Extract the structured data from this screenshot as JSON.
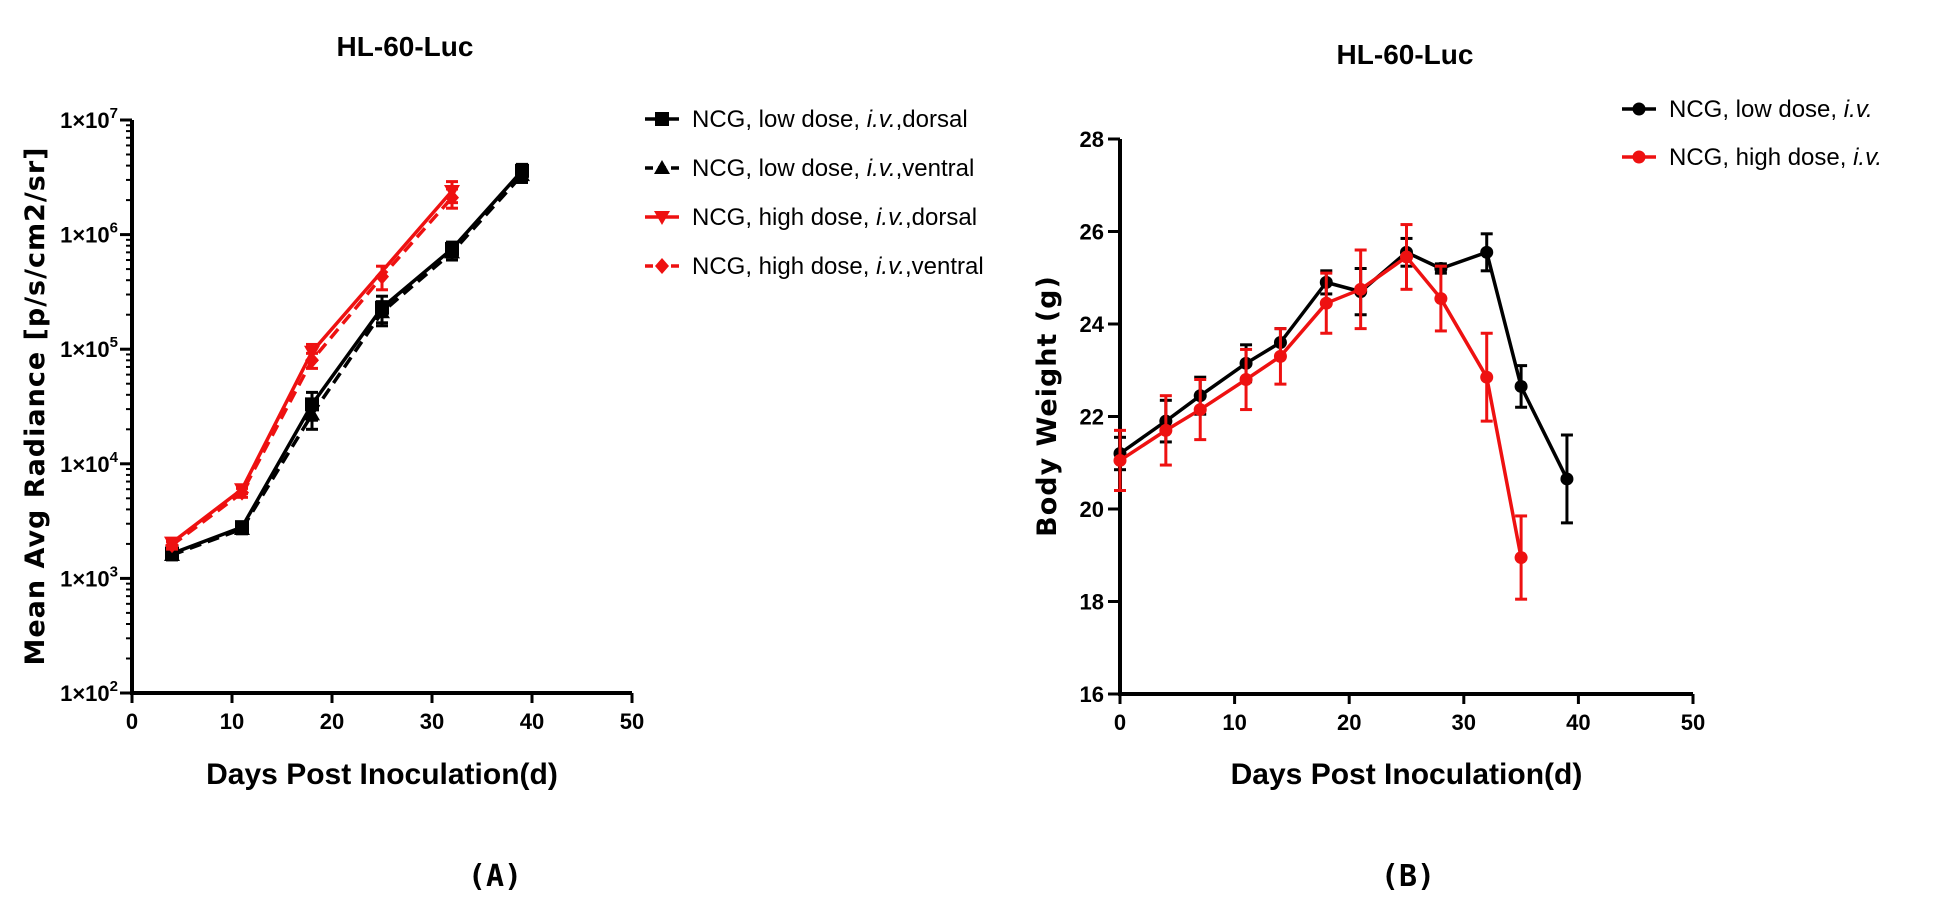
{
  "colors": {
    "black": "#000000",
    "red": "#ee1111"
  },
  "chart_data": [
    {
      "type": "line",
      "panel": "(A)",
      "title": "HL-60-Luc",
      "xlabel": "Days Post Inoculation(d)",
      "ylabel": "Mean Avg Radiance [p/s/cm2/sr]",
      "yscale": "log",
      "xlim": [
        0,
        50
      ],
      "ylim": [
        100,
        10000000
      ],
      "xticks": [
        0,
        10,
        20,
        30,
        40,
        50
      ],
      "yticks": [
        {
          "value": 100,
          "base": "1×10",
          "exp": "2"
        },
        {
          "value": 1000,
          "base": "1×10",
          "exp": "3"
        },
        {
          "value": 10000,
          "base": "1×10",
          "exp": "4"
        },
        {
          "value": 100000,
          "base": "1×10",
          "exp": "5"
        },
        {
          "value": 1000000,
          "base": "1×10",
          "exp": "6"
        },
        {
          "value": 10000000,
          "base": "1×10",
          "exp": "7"
        }
      ],
      "legend_position": "top-right-outside",
      "series": [
        {
          "name": "NCG, low dose, ",
          "name_italic": "i.v.",
          "name_suffix": ",dorsal",
          "color": "#000000",
          "dashed": false,
          "marker": "square",
          "x": [
            4,
            11,
            18,
            25,
            32,
            39
          ],
          "y": [
            1650,
            2800,
            33000,
            230000,
            750000,
            3600000
          ],
          "err": [
            150,
            250,
            9000,
            60000,
            110000,
            500000
          ]
        },
        {
          "name": "NCG, low dose, ",
          "name_italic": "i.v.",
          "name_suffix": ",ventral",
          "color": "#000000",
          "dashed": true,
          "marker": "triangle-up",
          "x": [
            4,
            11,
            18,
            25,
            32,
            39
          ],
          "y": [
            1600,
            2700,
            27000,
            210000,
            700000,
            3300000
          ],
          "err": [
            150,
            250,
            7000,
            50000,
            100000,
            450000
          ]
        },
        {
          "name": "NCG, high dose, ",
          "name_italic": "i.v.",
          "name_suffix": ",dorsal",
          "color": "#ee1111",
          "dashed": false,
          "marker": "triangle-down",
          "x": [
            4,
            11,
            18,
            32
          ],
          "y": [
            2050,
            6000,
            95000,
            2400000
          ],
          "err": [
            150,
            500,
            15000,
            500000
          ]
        },
        {
          "name": "NCG, high dose, ",
          "name_italic": "i.v.",
          "name_suffix": ",ventral",
          "color": "#ee1111",
          "dashed": true,
          "marker": "diamond",
          "x": [
            4,
            11,
            18,
            25,
            32
          ],
          "y": [
            1950,
            5600,
            80000,
            430000,
            2100000
          ],
          "err": [
            150,
            500,
            12000,
            100000,
            400000
          ]
        }
      ]
    },
    {
      "type": "line",
      "panel": "(B)",
      "title": "HL-60-Luc",
      "xlabel": "Days Post Inoculation(d)",
      "ylabel": "Body Weight (g)",
      "yscale": "linear",
      "xlim": [
        0,
        50
      ],
      "ylim": [
        16,
        28
      ],
      "xticks": [
        0,
        10,
        20,
        30,
        40,
        50
      ],
      "yticks": [
        16,
        18,
        20,
        22,
        24,
        26,
        28
      ],
      "legend_position": "top-right-outside",
      "series": [
        {
          "name": "NCG, low dose, ",
          "name_italic": "i.v.",
          "name_suffix": "",
          "color": "#000000",
          "dashed": false,
          "marker": "circle",
          "x": [
            0,
            4,
            7,
            11,
            14,
            18,
            21,
            25,
            28,
            32,
            35,
            39
          ],
          "y": [
            21.2,
            21.9,
            22.45,
            23.15,
            23.6,
            24.9,
            24.7,
            25.55,
            25.2,
            25.55,
            22.65,
            20.65
          ],
          "err": [
            0.35,
            0.45,
            0.4,
            0.4,
            0.3,
            0.25,
            0.5,
            0.3,
            0.1,
            0.4,
            0.45,
            0.95
          ]
        },
        {
          "name": "NCG, high dose, ",
          "name_italic": "i.v.",
          "name_suffix": "",
          "color": "#ee1111",
          "dashed": false,
          "marker": "circle",
          "x": [
            0,
            4,
            7,
            11,
            14,
            18,
            21,
            25,
            28,
            32,
            35
          ],
          "y": [
            21.05,
            21.7,
            22.15,
            22.8,
            23.3,
            24.45,
            24.75,
            25.45,
            24.55,
            22.85,
            18.95
          ],
          "err": [
            0.65,
            0.75,
            0.65,
            0.65,
            0.6,
            0.65,
            0.85,
            0.7,
            0.7,
            0.95,
            0.9
          ]
        }
      ]
    }
  ]
}
